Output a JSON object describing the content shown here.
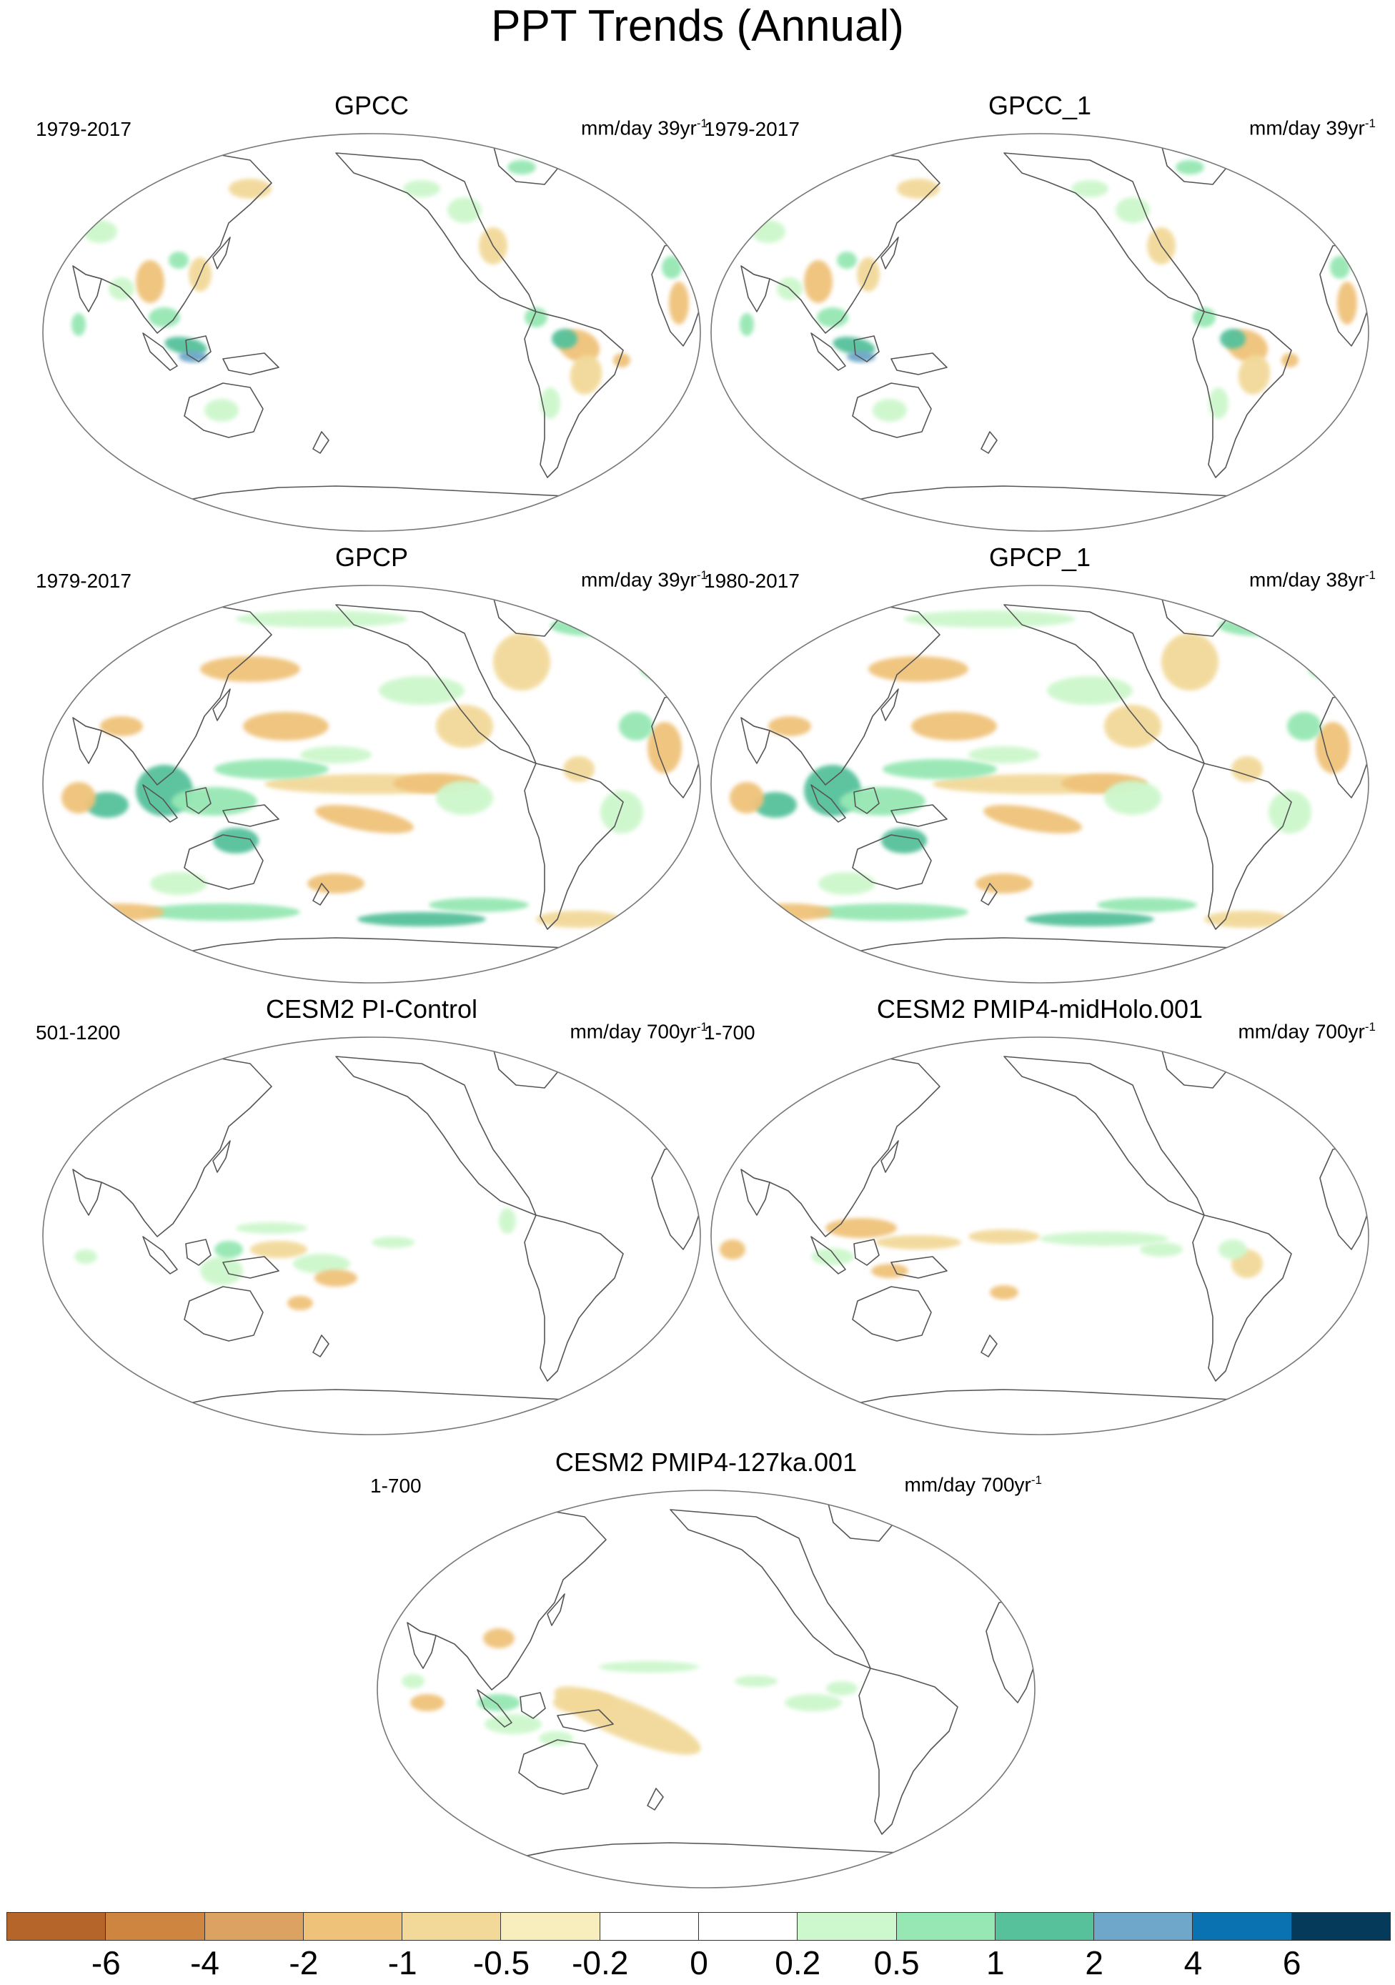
{
  "title": "PPT Trends (Annual)",
  "panels": [
    {
      "title": "GPCC",
      "period": "1979-2017",
      "units": "mm/day 39yr",
      "units_exp": "-1",
      "style": "station"
    },
    {
      "title": "GPCC_1",
      "period": "1979-2017",
      "units": "mm/day 39yr",
      "units_exp": "-1",
      "style": "station"
    },
    {
      "title": "GPCP",
      "period": "1979-2017",
      "units": "mm/day 39yr",
      "units_exp": "-1",
      "style": "satellite"
    },
    {
      "title": "GPCP_1",
      "period": "1980-2017",
      "units": "mm/day 38yr",
      "units_exp": "-1",
      "style": "satellite"
    },
    {
      "title": "CESM2 PI-Control",
      "period": "501-1200",
      "units": "mm/day 700yr",
      "units_exp": "-1",
      "style": "model_pi"
    },
    {
      "title": "CESM2 PMIP4-midHolo.001",
      "period": "1-700",
      "units": "mm/day 700yr",
      "units_exp": "-1",
      "style": "model_mh"
    },
    {
      "title": "CESM2 PMIP4-127ka.001",
      "period": "1-700",
      "units": "mm/day 700yr",
      "units_exp": "-1",
      "style": "model_lig"
    }
  ],
  "colorbar": {
    "colors": [
      "#b5652a",
      "#cd8540",
      "#dca262",
      "#efc27a",
      "#f2d99a",
      "#f8edbc",
      "#ffffff",
      "#ffffff",
      "#cdf7cc",
      "#96e7b3",
      "#56c19b",
      "#6ea7c9",
      "#0a72b0",
      "#063a5b"
    ],
    "labels": [
      "-6",
      "-4",
      "-2",
      "-1",
      "-0.5",
      "-0.2",
      "0",
      "0.2",
      "0.5",
      "1",
      "2",
      "4",
      "6"
    ]
  }
}
